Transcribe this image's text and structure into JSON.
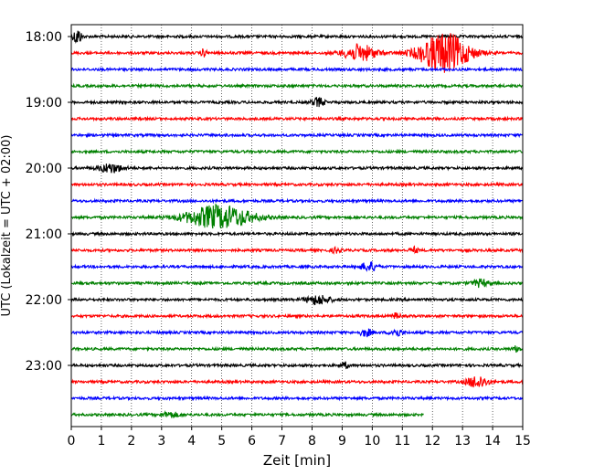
{
  "chart_data": {
    "type": "line",
    "title": "",
    "xlabel": "Zeit  [min]",
    "ylabel": "UTC (Lokalzeit = UTC + 02:00)",
    "xlim": [
      0,
      15
    ],
    "x_ticks": [
      "0",
      "1",
      "2",
      "3",
      "4",
      "5",
      "6",
      "7",
      "8",
      "9",
      "10",
      "11",
      "12",
      "13",
      "14",
      "15"
    ],
    "y_tick_labels": [
      "18:00",
      "19:00",
      "20:00",
      "21:00",
      "22:00",
      "23:00"
    ],
    "trace_interval_minutes": 15,
    "first_trace": "18:00",
    "grid": "vertical-dotted",
    "colors": [
      "#000000",
      "#ff0000",
      "#0000ff",
      "#008000"
    ],
    "series": [
      {
        "start": "18:00",
        "end_min": 15,
        "events": [
          {
            "t": 0.2,
            "amp": 9,
            "dur": 0.2
          }
        ]
      },
      {
        "start": "18:15",
        "end_min": 15,
        "events": [
          {
            "t": 4.4,
            "amp": 4,
            "dur": 0.15
          },
          {
            "t": 9.6,
            "amp": 9,
            "dur": 0.8
          },
          {
            "t": 12.4,
            "amp": 22,
            "dur": 1.2
          }
        ]
      },
      {
        "start": "18:30",
        "end_min": 15,
        "events": []
      },
      {
        "start": "18:45",
        "end_min": 15,
        "events": []
      },
      {
        "start": "19:00",
        "end_min": 15,
        "events": [
          {
            "t": 8.2,
            "amp": 5,
            "dur": 0.3
          }
        ]
      },
      {
        "start": "19:15",
        "end_min": 15,
        "events": []
      },
      {
        "start": "19:30",
        "end_min": 15,
        "events": []
      },
      {
        "start": "19:45",
        "end_min": 15,
        "events": []
      },
      {
        "start": "20:00",
        "end_min": 15,
        "events": [
          {
            "t": 1.3,
            "amp": 5,
            "dur": 0.6
          }
        ]
      },
      {
        "start": "20:15",
        "end_min": 15,
        "events": []
      },
      {
        "start": "20:30",
        "end_min": 15,
        "events": []
      },
      {
        "start": "20:45",
        "end_min": 15,
        "events": [
          {
            "t": 4.9,
            "amp": 13,
            "dur": 1.6
          }
        ]
      },
      {
        "start": "21:00",
        "end_min": 15,
        "events": []
      },
      {
        "start": "21:15",
        "end_min": 15,
        "events": [
          {
            "t": 8.8,
            "amp": 3,
            "dur": 0.2
          },
          {
            "t": 11.4,
            "amp": 3,
            "dur": 0.2
          }
        ]
      },
      {
        "start": "21:30",
        "end_min": 15,
        "events": [
          {
            "t": 9.9,
            "amp": 5,
            "dur": 0.4
          }
        ]
      },
      {
        "start": "21:45",
        "end_min": 15,
        "events": [
          {
            "t": 13.6,
            "amp": 4,
            "dur": 0.4
          }
        ]
      },
      {
        "start": "22:00",
        "end_min": 15,
        "events": [
          {
            "t": 8.2,
            "amp": 5,
            "dur": 0.6
          }
        ]
      },
      {
        "start": "22:15",
        "end_min": 15,
        "events": [
          {
            "t": 10.8,
            "amp": 3,
            "dur": 0.2
          }
        ]
      },
      {
        "start": "22:30",
        "end_min": 15,
        "events": [
          {
            "t": 9.8,
            "amp": 4,
            "dur": 0.3
          },
          {
            "t": 10.8,
            "amp": 4,
            "dur": 0.3
          }
        ]
      },
      {
        "start": "22:45",
        "end_min": 15,
        "events": [
          {
            "t": 14.8,
            "amp": 3,
            "dur": 0.2
          }
        ]
      },
      {
        "start": "23:00",
        "end_min": 15,
        "events": [
          {
            "t": 9.1,
            "amp": 3,
            "dur": 0.2
          }
        ]
      },
      {
        "start": "23:15",
        "end_min": 15,
        "events": [
          {
            "t": 13.5,
            "amp": 7,
            "dur": 0.5
          }
        ]
      },
      {
        "start": "23:30",
        "end_min": 15,
        "events": []
      },
      {
        "start": "23:45",
        "end_min": 11.7,
        "events": [
          {
            "t": 3.3,
            "amp": 3,
            "dur": 0.4
          }
        ]
      }
    ]
  }
}
